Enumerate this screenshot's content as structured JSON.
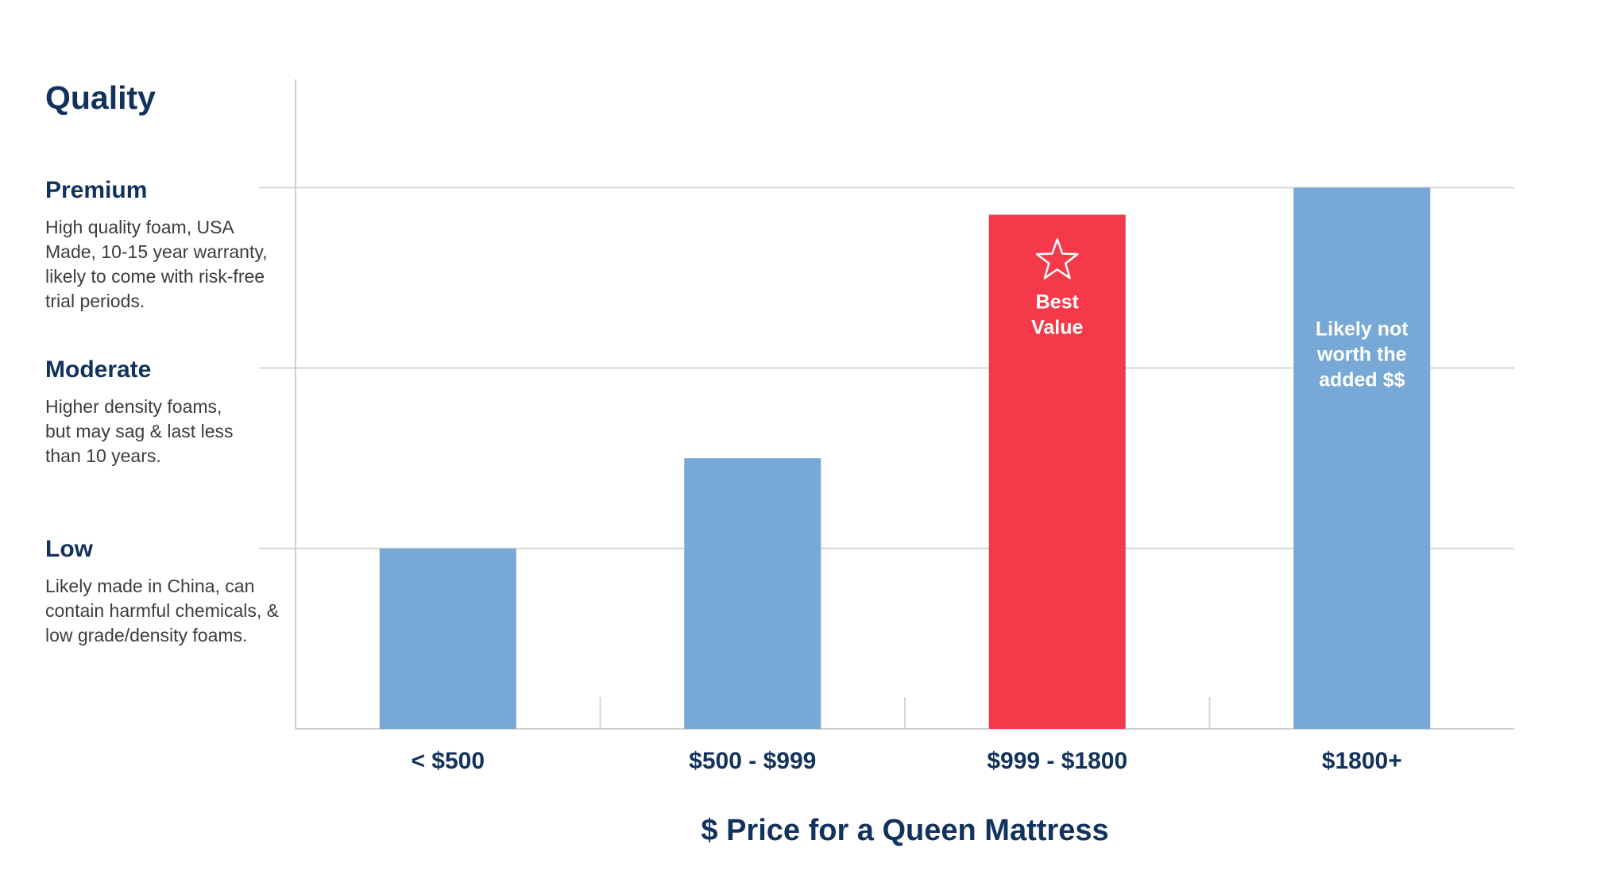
{
  "colors": {
    "bar_default": "#77a8d6",
    "bar_highlight": "#f43a4a",
    "text_dark": "#12325e",
    "text_body": "#3d3d3d",
    "grid": "#d7d7d7",
    "axis": "#cfcfcf"
  },
  "quality_levels": [
    {
      "name": "Premium",
      "description": "High quality foam, USA Made, 10-15 year warranty, likely to come with risk-free trial periods."
    },
    {
      "name": "Moderate",
      "description": "Higher density foams, but may sag & last less than 10 years."
    },
    {
      "name": "Low",
      "description": "Likely made in China, can contain harmful chemicals, & low grade/density foams."
    }
  ],
  "chart_data": {
    "type": "bar",
    "title": "",
    "ylabel": "Quality",
    "xlabel": "$ Price for a Queen Mattress",
    "categories": [
      "< $500",
      "$500 - $999",
      "$999 - $1800",
      "$1800+"
    ],
    "values": [
      1.0,
      1.5,
      2.85,
      3.0
    ],
    "ylim": [
      0,
      3.6
    ],
    "y_ticks": [
      {
        "value": 1,
        "label": "Low"
      },
      {
        "value": 2,
        "label": "Moderate"
      },
      {
        "value": 3,
        "label": "Premium"
      }
    ],
    "grid": true,
    "legend": "none",
    "highlight_index": 2,
    "annotations": [
      {
        "category": "$999 - $1800",
        "icon": "star-icon",
        "text": "Best Value"
      },
      {
        "category": "$1800+",
        "text": "Likely not worth the added $$"
      }
    ]
  }
}
